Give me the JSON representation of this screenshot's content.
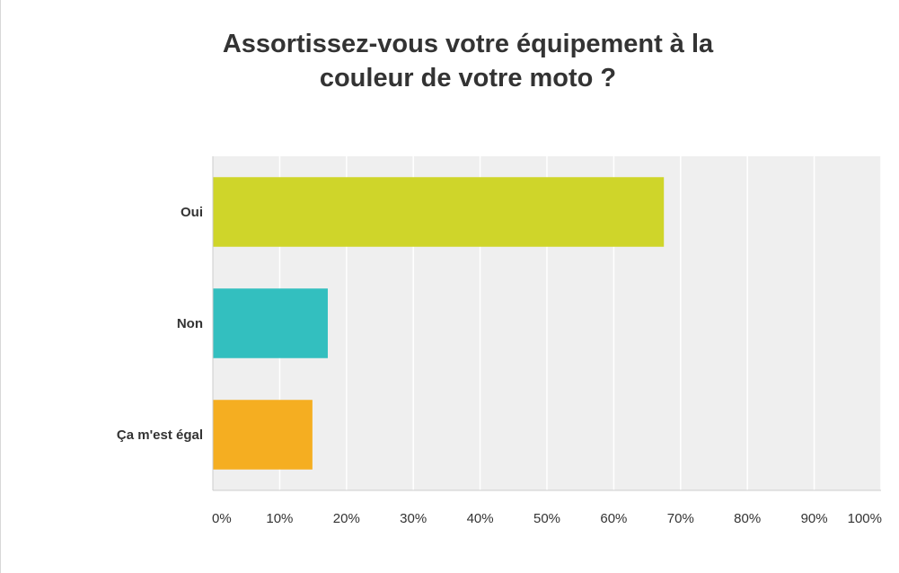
{
  "chart_data": {
    "type": "bar",
    "orientation": "horizontal",
    "title": "Assortissez-vous votre équipement à la\ncouleur de votre moto ?",
    "categories": [
      "Oui",
      "Non",
      "Ça m'est égal"
    ],
    "values": [
      67.5,
      17.2,
      14.9
    ],
    "colors": [
      "#cfd52a",
      "#33bfbf",
      "#f5ae21"
    ],
    "xlim": [
      0,
      100
    ],
    "ticks": [
      0,
      10,
      20,
      30,
      40,
      50,
      60,
      70,
      80,
      90,
      100
    ],
    "tick_labels": [
      "0%",
      "10%",
      "20%",
      "30%",
      "40%",
      "50%",
      "60%",
      "70%",
      "80%",
      "90%",
      "100%"
    ],
    "grid": true,
    "legend": "none",
    "plot_background": "#efefef",
    "grid_color": "#ffffff"
  }
}
